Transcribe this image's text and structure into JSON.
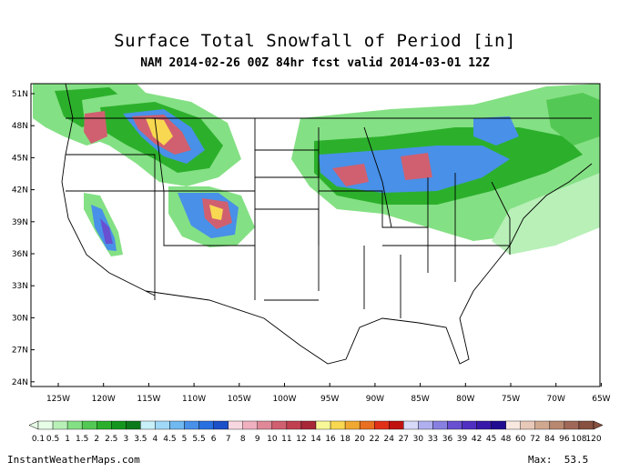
{
  "title": "Surface Total Snowfall of Period [in]",
  "subtitle": "NAM 2014-02-26 00Z 84hr fcst valid 2014-03-01 12Z",
  "footer": {
    "site": "InstantWeatherMaps.com",
    "max_label": "Max:",
    "max_value": "53.5"
  },
  "lat_labels": [
    "51N",
    "48N",
    "45N",
    "42N",
    "39N",
    "36N",
    "33N",
    "30N",
    "27N",
    "24N"
  ],
  "lon_labels": [
    "125W",
    "120W",
    "115W",
    "110W",
    "105W",
    "100W",
    "95W",
    "90W",
    "85W",
    "80W",
    "75W",
    "70W",
    "65W"
  ],
  "legend": {
    "labels": [
      "0.1",
      "0.5",
      "1",
      "1.5",
      "2",
      "2.5",
      "3",
      "3.5",
      "4",
      "4.5",
      "5",
      "5.5",
      "6",
      "7",
      "8",
      "9",
      "10",
      "11",
      "12",
      "14",
      "16",
      "18",
      "20",
      "22",
      "24",
      "27",
      "30",
      "33",
      "36",
      "39",
      "42",
      "45",
      "48",
      "60",
      "72",
      "84",
      "96",
      "108",
      "120"
    ],
    "colors": [
      "#e6fde6",
      "#b8f0b8",
      "#84e084",
      "#54c854",
      "#2cb02c",
      "#14961e",
      "#0c7a1a",
      "#c8f0f8",
      "#a0d8f8",
      "#70b8f0",
      "#4890e8",
      "#2870e0",
      "#1c50c8",
      "#f8d8e0",
      "#f0b0c0",
      "#e08898",
      "#d06070",
      "#c04050",
      "#a82838",
      "#f8f898",
      "#f8d850",
      "#f0a830",
      "#e87020",
      "#e03018",
      "#c01010",
      "#d8d8f8",
      "#b0b0f0",
      "#8880e0",
      "#6850d0",
      "#5030c0",
      "#3818a8",
      "#200c90",
      "#f8e8e0",
      "#e8c8b8",
      "#d0a890",
      "#b88870",
      "#a06858",
      "#885040"
    ]
  },
  "colors": {
    "land_bg": "#ffffff",
    "border": "#000000"
  }
}
